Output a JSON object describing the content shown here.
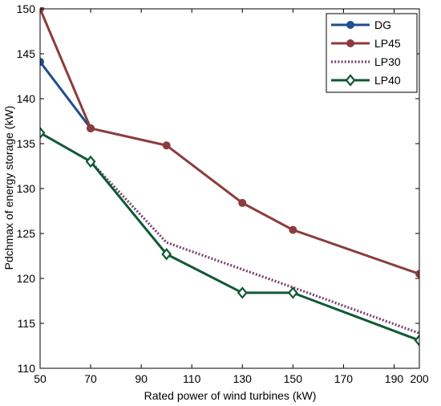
{
  "chart_data": {
    "type": "line",
    "title": "",
    "xlabel": "Rated power of wind turbines (kW)",
    "ylabel": "Pdchmax of energy storage (kW)",
    "xlim": [
      50,
      200
    ],
    "ylim": [
      110,
      150
    ],
    "xticks": [
      50,
      70,
      90,
      110,
      130,
      150,
      170,
      190,
      200
    ],
    "yticks": [
      110,
      115,
      120,
      125,
      130,
      135,
      140,
      145,
      150
    ],
    "grid": false,
    "legend_position": "top-right",
    "series": [
      {
        "name": "DG",
        "color": "#1f4e8c",
        "line_style": "solid",
        "marker": "circle",
        "x": [
          50,
          70
        ],
        "y": [
          144.1,
          136.7
        ]
      },
      {
        "name": "LP45",
        "color": "#8c3c3c",
        "line_style": "solid",
        "marker": "circle",
        "x": [
          50,
          70,
          100,
          130,
          150,
          200
        ],
        "y": [
          150.0,
          136.7,
          134.8,
          128.4,
          125.4,
          120.5
        ]
      },
      {
        "name": "LP30",
        "color": "#7b3f6e",
        "line_style": "dotted",
        "marker": "none",
        "x": [
          70,
          100,
          150,
          200
        ],
        "y": [
          133.0,
          124.0,
          119.0,
          113.9
        ]
      },
      {
        "name": "LP40",
        "color": "#0f5a33",
        "line_style": "solid",
        "marker": "diamond",
        "x": [
          50,
          70,
          100,
          130,
          150,
          200
        ],
        "y": [
          136.2,
          133.0,
          122.7,
          118.4,
          118.4,
          113.1
        ]
      }
    ]
  }
}
